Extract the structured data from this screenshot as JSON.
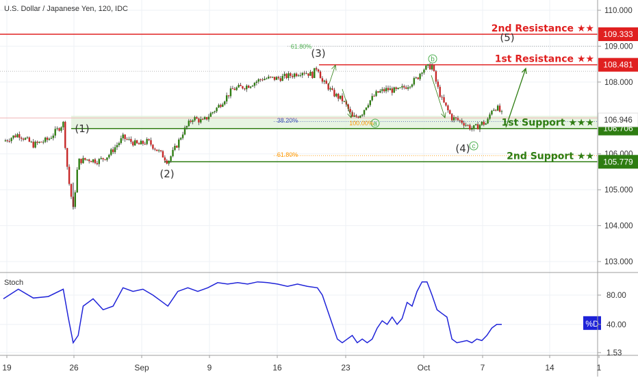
{
  "chart_data": [
    {
      "type": "candlestick",
      "title": "U.S. Dollar / Japanese Yen, 120, IDC",
      "x_ticks": [
        "19",
        "26",
        "Sep",
        "9",
        "16",
        "23",
        "Oct",
        "7",
        "14",
        "1"
      ],
      "y_ticks": [
        "110.000",
        "109.000",
        "108.000",
        "107.000",
        "106.000",
        "105.000",
        "104.000",
        "103.000"
      ],
      "ylim": [
        102.7,
        110.3
      ],
      "price_path": [
        [
          0,
          106.35
        ],
        [
          3,
          106.55
        ],
        [
          6,
          106.25
        ],
        [
          9,
          106.4
        ],
        [
          12,
          106.85
        ],
        [
          13,
          105.35
        ],
        [
          14,
          104.45
        ],
        [
          15,
          105.8
        ],
        [
          17,
          105.85
        ],
        [
          19,
          105.8
        ],
        [
          21,
          105.95
        ],
        [
          24,
          106.45
        ],
        [
          27,
          106.25
        ],
        [
          29,
          106.35
        ],
        [
          32,
          105.95
        ],
        [
          33,
          105.78
        ],
        [
          35,
          106.3
        ],
        [
          36,
          106.6
        ],
        [
          38,
          107.0
        ],
        [
          40,
          106.9
        ],
        [
          43,
          107.3
        ],
        [
          46,
          107.8
        ],
        [
          49,
          107.9
        ],
        [
          52,
          108.1
        ],
        [
          55,
          108.1
        ],
        [
          58,
          108.2
        ],
        [
          60,
          108.3
        ],
        [
          62,
          108.2
        ],
        [
          63,
          108.45
        ],
        [
          64,
          108.0
        ],
        [
          65,
          107.9
        ],
        [
          66,
          107.7
        ],
        [
          68,
          107.5
        ],
        [
          69,
          107.3
        ],
        [
          70,
          107.0
        ],
        [
          71,
          107.05
        ],
        [
          72,
          107.15
        ],
        [
          73,
          107.4
        ],
        [
          75,
          107.7
        ],
        [
          77,
          107.8
        ],
        [
          79,
          107.75
        ],
        [
          81,
          107.9
        ],
        [
          83,
          108.1
        ],
        [
          84,
          108.35
        ],
        [
          85,
          108.4
        ],
        [
          86,
          108.45
        ],
        [
          87,
          107.9
        ],
        [
          88,
          107.5
        ],
        [
          90,
          107.0
        ],
        [
          92,
          106.9
        ],
        [
          94,
          106.7
        ],
        [
          95,
          106.75
        ],
        [
          96,
          106.85
        ],
        [
          97,
          106.85
        ],
        [
          98,
          107.25
        ],
        [
          99,
          107.3
        ],
        [
          100,
          107.1
        ]
      ],
      "price_last": 107.1,
      "stoch": {
        "name": "Stoch",
        "label": "%D",
        "ylim": [
          1.53,
          100
        ],
        "y_ticks": [
          "80.00",
          "40.00",
          "1.53"
        ],
        "values": [
          [
            0,
            75
          ],
          [
            3,
            88
          ],
          [
            6,
            76
          ],
          [
            9,
            78
          ],
          [
            12,
            88
          ],
          [
            13,
            50
          ],
          [
            14,
            15
          ],
          [
            15,
            25
          ],
          [
            16,
            65
          ],
          [
            18,
            75
          ],
          [
            20,
            60
          ],
          [
            22,
            65
          ],
          [
            24,
            90
          ],
          [
            26,
            85
          ],
          [
            28,
            88
          ],
          [
            30,
            80
          ],
          [
            32,
            70
          ],
          [
            33,
            65
          ],
          [
            35,
            85
          ],
          [
            37,
            90
          ],
          [
            39,
            85
          ],
          [
            41,
            90
          ],
          [
            43,
            97
          ],
          [
            45,
            95
          ],
          [
            47,
            97
          ],
          [
            49,
            95
          ],
          [
            51,
            98
          ],
          [
            53,
            97
          ],
          [
            55,
            95
          ],
          [
            57,
            92
          ],
          [
            59,
            95
          ],
          [
            61,
            92
          ],
          [
            63,
            90
          ],
          [
            64,
            80
          ],
          [
            65,
            60
          ],
          [
            66,
            40
          ],
          [
            67,
            20
          ],
          [
            68,
            15
          ],
          [
            69,
            20
          ],
          [
            70,
            25
          ],
          [
            71,
            15
          ],
          [
            72,
            20
          ],
          [
            73,
            15
          ],
          [
            74,
            20
          ],
          [
            75,
            35
          ],
          [
            76,
            45
          ],
          [
            77,
            40
          ],
          [
            78,
            50
          ],
          [
            79,
            40
          ],
          [
            80,
            48
          ],
          [
            81,
            70
          ],
          [
            82,
            65
          ],
          [
            83,
            85
          ],
          [
            84,
            98
          ],
          [
            85,
            98
          ],
          [
            86,
            80
          ],
          [
            87,
            60
          ],
          [
            88,
            55
          ],
          [
            89,
            50
          ],
          [
            90,
            20
          ],
          [
            91,
            15
          ],
          [
            93,
            18
          ],
          [
            94,
            15
          ],
          [
            95,
            20
          ],
          [
            96,
            18
          ],
          [
            97,
            25
          ],
          [
            98,
            35
          ],
          [
            99,
            40
          ],
          [
            100,
            40
          ]
        ]
      },
      "levels": [
        {
          "name": "2nd Resistance",
          "stars": "★★",
          "value": "109.333",
          "y": 109.333,
          "color": "#e02020"
        },
        {
          "name": "1st Resistance",
          "stars": "★★",
          "value": "108.481",
          "y": 108.481,
          "color": "#e02020"
        },
        {
          "name": "1st Support",
          "stars": "★★★",
          "value": "106.706",
          "y": 106.706,
          "color": "#2e7d12"
        },
        {
          "name": "2nd Support",
          "stars": "★★",
          "value": "105.779",
          "y": 105.779,
          "color": "#2e7d12"
        }
      ],
      "current_price": {
        "value": "106.946",
        "y": 106.946
      },
      "fib_labels": [
        {
          "text": "61.80%",
          "color": "#4caf50"
        },
        {
          "text": "38.20%",
          "color": "#3f51b5"
        },
        {
          "text": "100.00%",
          "color": "#ff9800"
        },
        {
          "text": "61.80%",
          "color": "#ff9800"
        }
      ],
      "wave_labels": [
        "(1)",
        "(2)",
        "(3)",
        "(4)",
        "(5)"
      ],
      "abc_labels": [
        "a",
        "b",
        "c"
      ]
    }
  ]
}
